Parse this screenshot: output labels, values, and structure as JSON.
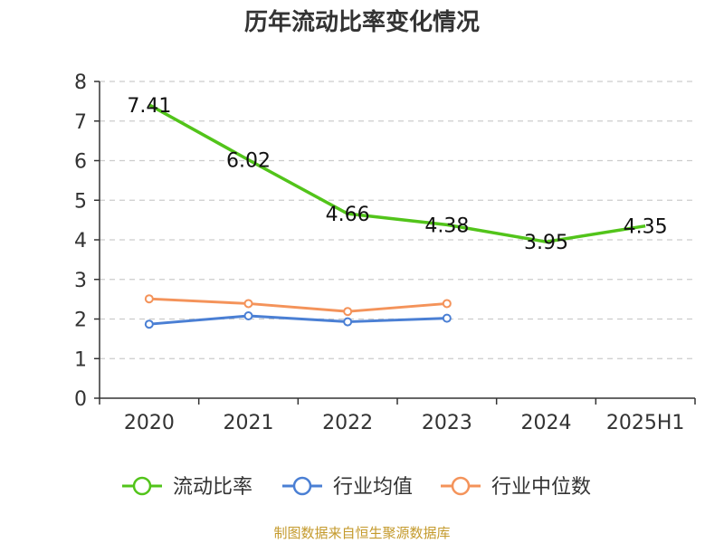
{
  "chart_data": {
    "type": "line",
    "title": "历年流动比率变化情况",
    "categories": [
      "2020",
      "2021",
      "2022",
      "2023",
      "2024",
      "2025H1"
    ],
    "ylim": [
      0,
      8
    ],
    "yticks": [
      "0",
      "1",
      "2",
      "3",
      "4",
      "5",
      "6",
      "7",
      "8"
    ],
    "grid": true,
    "legend_position": "bottom",
    "series": [
      {
        "name": "流动比率",
        "color": "#52c41a",
        "values": [
          7.41,
          6.02,
          4.66,
          4.38,
          3.95,
          4.35
        ],
        "labels": [
          "7.41",
          "6.02",
          "4.66",
          "4.38",
          "3.95",
          "4.35"
        ]
      },
      {
        "name": "行业均值",
        "color": "#4a7fd4",
        "values": [
          1.87,
          2.08,
          1.93,
          2.02,
          null,
          null
        ]
      },
      {
        "name": "行业中位数",
        "color": "#f4935a",
        "values": [
          2.51,
          2.39,
          2.19,
          2.39,
          null,
          null
        ]
      }
    ]
  },
  "footer": {
    "source": "制图数据来自恒生聚源数据库",
    "source_color": "#c49a2c"
  }
}
